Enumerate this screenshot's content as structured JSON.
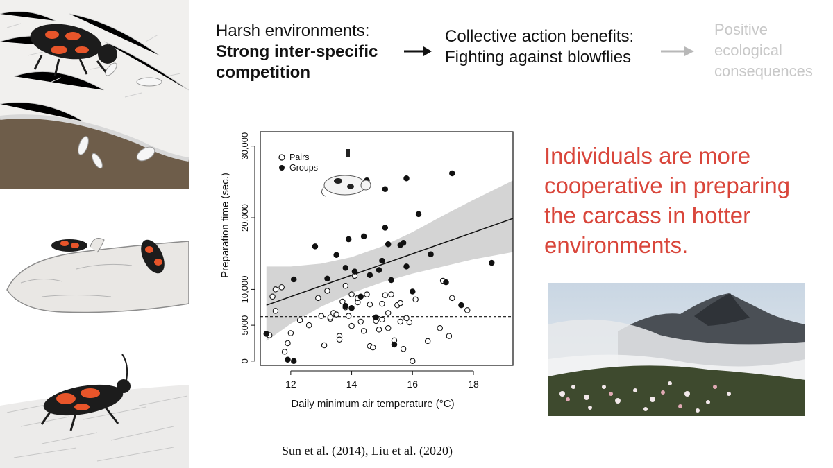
{
  "flow": {
    "step1_line1": "Harsh environments:",
    "step1_line2": "Strong inter-specific",
    "step1_line3": "competition",
    "step2_line1": "Collective action benefits:",
    "step2_line2": "Fighting against blowflies",
    "step3_line1": "Positive",
    "step3_line2": "ecological",
    "step3_line3": "consequences"
  },
  "takeaway": {
    "line1": "Individuals are more",
    "line2": "cooperative in preparing",
    "line3": "the carcass in hotter",
    "line4": "environments."
  },
  "citation": "Sun et al. (2014), Liu et al. (2020)",
  "colors": {
    "accent_red": "#d9463b",
    "beetle_orange": "#e8552a",
    "faded_gray": "#c8c8c8",
    "soil_brown": "#6e5d4a"
  },
  "icons": [
    "burying-beetle-icon",
    "mouse-carcass-icon",
    "larva-icon",
    "mountain-photo"
  ],
  "chart_data": {
    "type": "scatter",
    "xlabel": "Daily minimum air temperature (°C)",
    "ylabel": "Preparation time (sec.)",
    "xlim": [
      11,
      19.3
    ],
    "ylim": [
      -600,
      32000
    ],
    "xticks": [
      12,
      14,
      16,
      18
    ],
    "yticks": [
      0,
      5000,
      10000,
      20000,
      30000
    ],
    "ytick_labels": [
      "0",
      "5000",
      "10,000",
      "20,000",
      "30,000"
    ],
    "legend": {
      "position": "top-left",
      "entries": [
        "Pairs",
        "Groups"
      ]
    },
    "series": [
      {
        "name": "Pairs",
        "marker": "open-circle",
        "points": [
          [
            11.3,
            3600
          ],
          [
            11.4,
            9000
          ],
          [
            11.5,
            10000
          ],
          [
            11.5,
            7000
          ],
          [
            11.7,
            10300
          ],
          [
            11.8,
            1300
          ],
          [
            11.9,
            2500
          ],
          [
            12.0,
            3900
          ],
          [
            12.3,
            5700
          ],
          [
            12.6,
            5000
          ],
          [
            12.9,
            8800
          ],
          [
            13.0,
            6300
          ],
          [
            13.1,
            2200
          ],
          [
            13.2,
            9800
          ],
          [
            13.3,
            5900
          ],
          [
            13.4,
            6700
          ],
          [
            13.5,
            6500
          ],
          [
            13.6,
            3500
          ],
          [
            13.6,
            3000
          ],
          [
            13.7,
            8300
          ],
          [
            13.8,
            10500
          ],
          [
            13.8,
            7500
          ],
          [
            13.9,
            6300
          ],
          [
            14.0,
            4900
          ],
          [
            14.0,
            9300
          ],
          [
            14.1,
            11900
          ],
          [
            14.2,
            8200
          ],
          [
            14.3,
            5500
          ],
          [
            14.4,
            4200
          ],
          [
            14.5,
            9300
          ],
          [
            14.6,
            7900
          ],
          [
            14.6,
            2100
          ],
          [
            14.7,
            1900
          ],
          [
            14.8,
            5600
          ],
          [
            14.9,
            4400
          ],
          [
            15.0,
            8000
          ],
          [
            15.0,
            5800
          ],
          [
            15.1,
            9200
          ],
          [
            15.2,
            4600
          ],
          [
            15.2,
            6700
          ],
          [
            15.3,
            9300
          ],
          [
            15.4,
            2900
          ],
          [
            15.5,
            7800
          ],
          [
            15.6,
            5500
          ],
          [
            15.7,
            1700
          ],
          [
            15.8,
            6000
          ],
          [
            15.9,
            5400
          ],
          [
            16.0,
            0
          ],
          [
            16.1,
            8600
          ],
          [
            16.5,
            2800
          ],
          [
            16.9,
            4600
          ],
          [
            17.0,
            11200
          ],
          [
            17.2,
            3500
          ],
          [
            17.3,
            8800
          ],
          [
            17.8,
            7100
          ],
          [
            14.2,
            8800
          ],
          [
            13.3,
            6100
          ],
          [
            15.6,
            8100
          ]
        ]
      },
      {
        "name": "Groups",
        "marker": "filled-circle",
        "points": [
          [
            11.2,
            3800
          ],
          [
            11.9,
            200
          ],
          [
            12.1,
            0
          ],
          [
            12.1,
            11400
          ],
          [
            12.8,
            16000
          ],
          [
            13.2,
            11500
          ],
          [
            13.5,
            14800
          ],
          [
            13.8,
            7700
          ],
          [
            13.8,
            13000
          ],
          [
            13.9,
            17000
          ],
          [
            14.0,
            7400
          ],
          [
            14.1,
            12500
          ],
          [
            14.3,
            9000
          ],
          [
            14.4,
            17400
          ],
          [
            14.5,
            25200
          ],
          [
            14.6,
            12000
          ],
          [
            14.8,
            6100
          ],
          [
            14.9,
            12700
          ],
          [
            15.0,
            14000
          ],
          [
            15.1,
            18600
          ],
          [
            15.1,
            24000
          ],
          [
            15.2,
            16300
          ],
          [
            15.3,
            11300
          ],
          [
            15.4,
            2300
          ],
          [
            15.6,
            16200
          ],
          [
            15.7,
            16500
          ],
          [
            15.8,
            25500
          ],
          [
            15.8,
            13200
          ],
          [
            16.0,
            9700
          ],
          [
            16.2,
            20500
          ],
          [
            16.6,
            14900
          ],
          [
            17.1,
            11000
          ],
          [
            17.3,
            26200
          ],
          [
            17.6,
            7800
          ],
          [
            18.6,
            13700
          ]
        ]
      }
    ],
    "fit_line": {
      "x": [
        11.2,
        19.3
      ],
      "y": [
        7800,
        19900
      ]
    },
    "confidence_band": {
      "x": [
        11.2,
        12,
        13,
        14,
        15,
        16,
        17,
        18,
        19.3
      ],
      "upper": [
        13200,
        13200,
        13600,
        14500,
        16000,
        18000,
        20300,
        22500,
        25200
      ],
      "lower": [
        2800,
        5200,
        7600,
        9500,
        11000,
        12200,
        13200,
        14200,
        15200
      ]
    },
    "reference_line": {
      "style": "dashed",
      "y": 6200
    }
  }
}
